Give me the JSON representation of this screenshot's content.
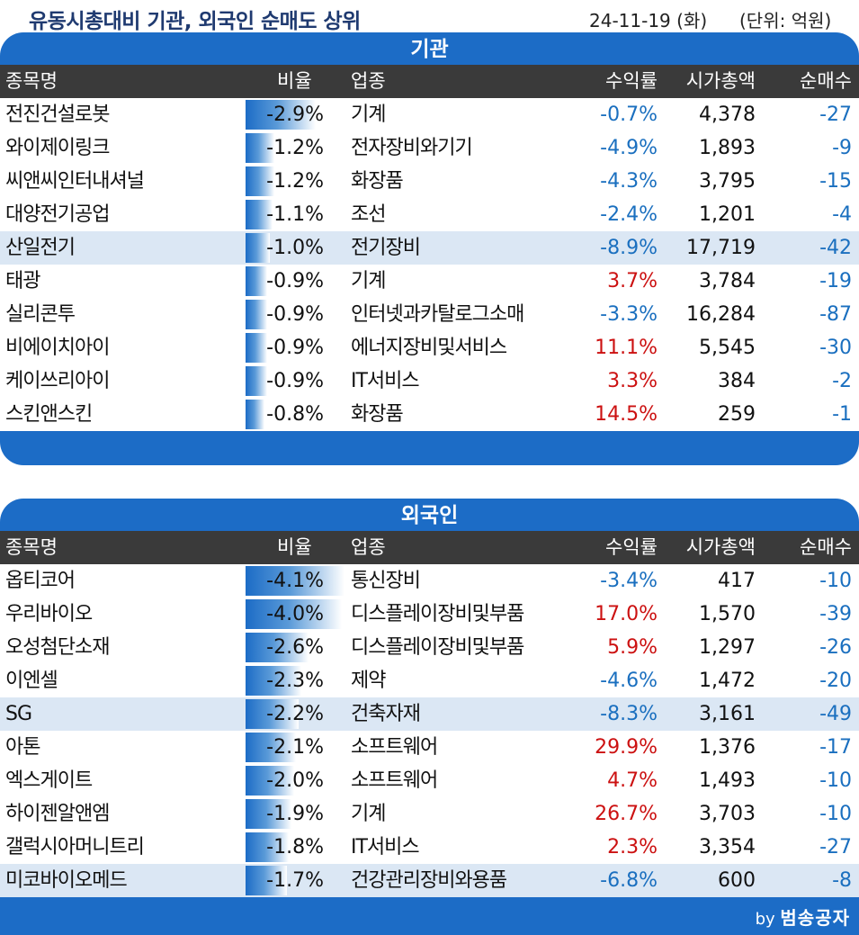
{
  "header": {
    "title": "유동시총대비 기관, 외국인 순매도 상위",
    "date": "24-11-19 (화)",
    "unit": "(단위: 억원)"
  },
  "columns": {
    "name": "종목명",
    "ratio": "비율",
    "sector": "업종",
    "return": "수익률",
    "market_cap": "시가총액",
    "net": "순매수"
  },
  "colors": {
    "banner": "#1c6cc6",
    "header_bar": "#3a3a3a",
    "highlight_row": "#dbe7f4",
    "negative": "#1a6fbf",
    "positive": "#cc1111"
  },
  "institution": {
    "title": "기관",
    "rows": [
      {
        "name": "전진건설로봇",
        "ratio": "-2.9%",
        "ratio_value": -2.9,
        "sector": "기계",
        "return": "-0.7%",
        "cap": "4,378",
        "net": "-27",
        "highlight": false
      },
      {
        "name": "와이제이링크",
        "ratio": "-1.2%",
        "ratio_value": -1.2,
        "sector": "전자장비와기기",
        "return": "-4.9%",
        "cap": "1,893",
        "net": "-9",
        "highlight": false
      },
      {
        "name": "씨앤씨인터내셔널",
        "ratio": "-1.2%",
        "ratio_value": -1.2,
        "sector": "화장품",
        "return": "-4.3%",
        "cap": "3,795",
        "net": "-15",
        "highlight": false
      },
      {
        "name": "대양전기공업",
        "ratio": "-1.1%",
        "ratio_value": -1.1,
        "sector": "조선",
        "return": "-2.4%",
        "cap": "1,201",
        "net": "-4",
        "highlight": false
      },
      {
        "name": "산일전기",
        "ratio": "-1.0%",
        "ratio_value": -1.0,
        "sector": "전기장비",
        "return": "-8.9%",
        "cap": "17,719",
        "net": "-42",
        "highlight": true
      },
      {
        "name": "태광",
        "ratio": "-0.9%",
        "ratio_value": -0.9,
        "sector": "기계",
        "return": "3.7%",
        "cap": "3,784",
        "net": "-19",
        "highlight": false
      },
      {
        "name": "실리콘투",
        "ratio": "-0.9%",
        "ratio_value": -0.9,
        "sector": "인터넷과카탈로그소매",
        "return": "-3.3%",
        "cap": "16,284",
        "net": "-87",
        "highlight": false
      },
      {
        "name": "비에이치아이",
        "ratio": "-0.9%",
        "ratio_value": -0.9,
        "sector": "에너지장비및서비스",
        "return": "11.1%",
        "cap": "5,545",
        "net": "-30",
        "highlight": false
      },
      {
        "name": "케이쓰리아이",
        "ratio": "-0.9%",
        "ratio_value": -0.9,
        "sector": "IT서비스",
        "return": "3.3%",
        "cap": "384",
        "net": "-2",
        "highlight": false
      },
      {
        "name": "스킨앤스킨",
        "ratio": "-0.8%",
        "ratio_value": -0.8,
        "sector": "화장품",
        "return": "14.5%",
        "cap": "259",
        "net": "-1",
        "highlight": false
      }
    ]
  },
  "foreign": {
    "title": "외국인",
    "rows": [
      {
        "name": "옵티코어",
        "ratio": "-4.1%",
        "ratio_value": -4.1,
        "sector": "통신장비",
        "return": "-3.4%",
        "cap": "417",
        "net": "-10",
        "highlight": false
      },
      {
        "name": "우리바이오",
        "ratio": "-4.0%",
        "ratio_value": -4.0,
        "sector": "디스플레이장비및부품",
        "return": "17.0%",
        "cap": "1,570",
        "net": "-39",
        "highlight": false
      },
      {
        "name": "오성첨단소재",
        "ratio": "-2.6%",
        "ratio_value": -2.6,
        "sector": "디스플레이장비및부품",
        "return": "5.9%",
        "cap": "1,297",
        "net": "-26",
        "highlight": false
      },
      {
        "name": "이엔셀",
        "ratio": "-2.3%",
        "ratio_value": -2.3,
        "sector": "제약",
        "return": "-4.6%",
        "cap": "1,472",
        "net": "-20",
        "highlight": false
      },
      {
        "name": "SG",
        "ratio": "-2.2%",
        "ratio_value": -2.2,
        "sector": "건축자재",
        "return": "-8.3%",
        "cap": "3,161",
        "net": "-49",
        "highlight": true
      },
      {
        "name": "아톤",
        "ratio": "-2.1%",
        "ratio_value": -2.1,
        "sector": "소프트웨어",
        "return": "29.9%",
        "cap": "1,376",
        "net": "-17",
        "highlight": false
      },
      {
        "name": "엑스게이트",
        "ratio": "-2.0%",
        "ratio_value": -2.0,
        "sector": "소프트웨어",
        "return": "4.7%",
        "cap": "1,493",
        "net": "-10",
        "highlight": false
      },
      {
        "name": "하이젠알앤엠",
        "ratio": "-1.9%",
        "ratio_value": -1.9,
        "sector": "기계",
        "return": "26.7%",
        "cap": "3,703",
        "net": "-10",
        "highlight": false
      },
      {
        "name": "갤럭시아머니트리",
        "ratio": "-1.8%",
        "ratio_value": -1.8,
        "sector": "IT서비스",
        "return": "2.3%",
        "cap": "3,354",
        "net": "-27",
        "highlight": false
      },
      {
        "name": "미코바이오메드",
        "ratio": "-1.7%",
        "ratio_value": -1.7,
        "sector": "건강관리장비와용품",
        "return": "-6.8%",
        "cap": "600",
        "net": "-8",
        "highlight": true
      }
    ]
  },
  "footer": {
    "by": "by",
    "author": "범송공자"
  }
}
